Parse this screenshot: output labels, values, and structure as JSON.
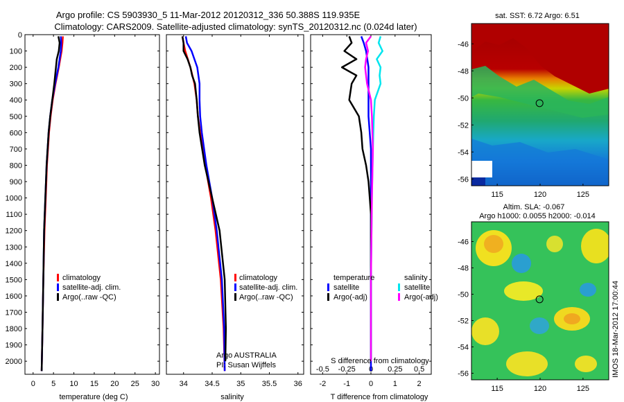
{
  "title": {
    "line1": "Argo profile: CS 5903930_5 11-Mar-2012 20120312_336 50.388S 119.935E",
    "line2": "Climatology: CARS2009. Satellite-adjusted climatology: synTS_20120312.nc (0.024d later)"
  },
  "stamp": "IMOS 18-Mar-2012 17:00:44",
  "colors": {
    "climatology": "#ff0000",
    "satellite": "#0000ff",
    "argo": "#000000",
    "sal_satellite": "#00e5ee",
    "sal_argo": "#ff00ff"
  },
  "chart_data": [
    {
      "type": "line",
      "panel": "temperature",
      "xlabel": "temperature (deg C)",
      "ylabel": "",
      "xlim": [
        -2,
        31
      ],
      "ylim": [
        2080,
        0
      ],
      "xticks": [
        "0",
        "5",
        "10",
        "15",
        "20",
        "25",
        "30"
      ],
      "yticks": [
        "0",
        "100",
        "200",
        "300",
        "400",
        "500",
        "600",
        "700",
        "800",
        "900",
        "1000",
        "1100",
        "1200",
        "1300",
        "1400",
        "1500",
        "1600",
        "1700",
        "1800",
        "1900",
        "2000"
      ],
      "legend": [
        "climatology",
        "satellite-adj. clim.",
        "Argo(..raw -QC)"
      ],
      "series": [
        {
          "name": "climatology",
          "depth": [
            10,
            50,
            100,
            200,
            300,
            400,
            500,
            600,
            800,
            1000,
            1200,
            1500,
            1800,
            2060
          ],
          "values": [
            7.3,
            7.2,
            7.0,
            6.3,
            5.5,
            4.8,
            4.3,
            3.9,
            3.4,
            3.1,
            2.8,
            2.5,
            2.3,
            2.1
          ]
        },
        {
          "name": "satellite-adj. clim.",
          "depth": [
            10,
            50,
            100,
            200,
            300,
            400,
            500,
            600,
            800,
            1000,
            1200,
            1500,
            1800,
            2060
          ],
          "values": [
            6.8,
            6.9,
            6.8,
            6.2,
            5.4,
            4.7,
            4.2,
            3.8,
            3.3,
            3.0,
            2.7,
            2.5,
            2.3,
            2.1
          ]
        },
        {
          "name": "Argo(..raw -QC)",
          "depth": [
            10,
            50,
            100,
            150,
            200,
            250,
            300,
            400,
            500,
            600,
            800,
            1000,
            1200,
            1500,
            1800,
            2060
          ],
          "values": [
            6.2,
            6.5,
            6.3,
            5.8,
            5.6,
            5.4,
            5.2,
            4.7,
            4.2,
            3.8,
            3.3,
            3.0,
            2.7,
            2.5,
            2.3,
            2.1
          ]
        }
      ]
    },
    {
      "type": "line",
      "panel": "salinity",
      "xlabel": "salinity",
      "xlim": [
        33.7,
        36.1
      ],
      "ylim": [
        2080,
        0
      ],
      "xticks": [
        "34",
        "34.5",
        "35",
        "35.5",
        "36"
      ],
      "legend": [
        "climatology",
        "satellite-adj. clim.",
        "Argo(..raw -QC)"
      ],
      "annotation": [
        "Argo AUSTRALIA",
        "PI: Susan Wijffels"
      ],
      "series": [
        {
          "name": "climatology",
          "depth": [
            10,
            50,
            100,
            200,
            300,
            400,
            500,
            600,
            800,
            1000,
            1200,
            1500,
            1800,
            2060
          ],
          "values": [
            33.98,
            34.0,
            34.03,
            34.12,
            34.19,
            34.23,
            34.25,
            34.29,
            34.38,
            34.48,
            34.56,
            34.65,
            34.7,
            34.72
          ]
        },
        {
          "name": "satellite-adj. clim.",
          "depth": [
            10,
            50,
            100,
            200,
            300,
            400,
            500,
            600,
            800,
            1000,
            1200,
            1500,
            1800,
            2060
          ],
          "values": [
            34.04,
            34.06,
            34.14,
            34.24,
            34.28,
            34.28,
            34.29,
            34.32,
            34.4,
            34.5,
            34.58,
            34.67,
            34.71,
            34.72
          ]
        },
        {
          "name": "Argo(..raw -QC)",
          "depth": [
            10,
            50,
            100,
            150,
            200,
            250,
            300,
            400,
            500,
            600,
            800,
            1000,
            1200,
            1500,
            1800,
            2000
          ],
          "values": [
            33.98,
            34.0,
            34.0,
            34.07,
            34.12,
            34.15,
            34.2,
            34.23,
            34.25,
            34.28,
            34.37,
            34.5,
            34.63,
            34.72,
            34.74,
            34.73
          ]
        }
      ]
    },
    {
      "type": "line",
      "panel": "difference",
      "xlabel": "T difference from climatology",
      "xlabel_top": "S difference from climatology",
      "xlim": [
        -2.5,
        2.5
      ],
      "ylim": [
        2080,
        0
      ],
      "xticks": [
        "-2",
        "-1",
        "0",
        "1",
        "2"
      ],
      "sticks": [
        "-0.5",
        "-0.25",
        "0",
        "0.25",
        "0.5"
      ],
      "legend_temperature": [
        "temperature",
        "satellite",
        "Argo(-adj)"
      ],
      "legend_salinity": [
        "salinity",
        "satellite",
        "Argo(-adj)"
      ],
      "series": [
        {
          "name": "T satellite",
          "depth": [
            10,
            50,
            100,
            200,
            300,
            400,
            500,
            700,
            1000,
            1500,
            2000,
            2060
          ],
          "values": [
            -0.4,
            -0.3,
            -0.2,
            -0.1,
            -0.1,
            -0.1,
            -0.1,
            0,
            0,
            0,
            0,
            0
          ]
        },
        {
          "name": "T Argo(-adj)",
          "depth": [
            10,
            50,
            100,
            150,
            200,
            250,
            300,
            400,
            500,
            600,
            700,
            800,
            900,
            1000,
            1100,
            1500,
            2000
          ],
          "values": [
            -0.9,
            -0.8,
            -1.1,
            -0.6,
            -1.2,
            -0.6,
            -0.8,
            -0.9,
            -0.5,
            -0.4,
            -0.35,
            -0.2,
            -0.1,
            -0.05,
            0,
            0,
            0
          ]
        },
        {
          "name": "S satellite",
          "depth": [
            10,
            50,
            100,
            150,
            200,
            250,
            300,
            400,
            500,
            700,
            1000,
            1500,
            2000
          ],
          "values": [
            0.1,
            0.08,
            0.12,
            0.06,
            0.1,
            0.09,
            0.1,
            0.04,
            0.03,
            0.02,
            0.01,
            0,
            0
          ]
        },
        {
          "name": "S Argo(-adj)",
          "depth": [
            10,
            50,
            100,
            150,
            200,
            250,
            300,
            400,
            500,
            700,
            1000,
            1500,
            2000
          ],
          "values": [
            0,
            -0.05,
            -0.03,
            -0.05,
            -0.06,
            -0.05,
            -0.04,
            0,
            0.01,
            0.02,
            0.01,
            0,
            0
          ]
        }
      ]
    },
    {
      "type": "heatmap",
      "panel": "sst-map",
      "title": "sat. SST: 6.72 Argo: 6.51",
      "xticks": [
        "115",
        "120",
        "125"
      ],
      "yticks": [
        "-46",
        "-48",
        "-50",
        "-52",
        "-54",
        "-56"
      ],
      "xlim": [
        112,
        128
      ],
      "ylim": [
        -56.5,
        -44.5
      ],
      "marker": {
        "lon": 119.935,
        "lat": -50.388
      }
    },
    {
      "type": "heatmap",
      "panel": "sla-map",
      "title": "Altim. SLA: -0.067",
      "subtitle": "Argo h1000: 0.0055 h2000: -0.014",
      "xticks": [
        "115",
        "120",
        "125"
      ],
      "yticks": [
        "-46",
        "-48",
        "-50",
        "-52",
        "-54",
        "-56"
      ],
      "xlim": [
        112,
        128
      ],
      "ylim": [
        -56.5,
        -44.5
      ],
      "marker": {
        "lon": 119.935,
        "lat": -50.388
      }
    }
  ]
}
